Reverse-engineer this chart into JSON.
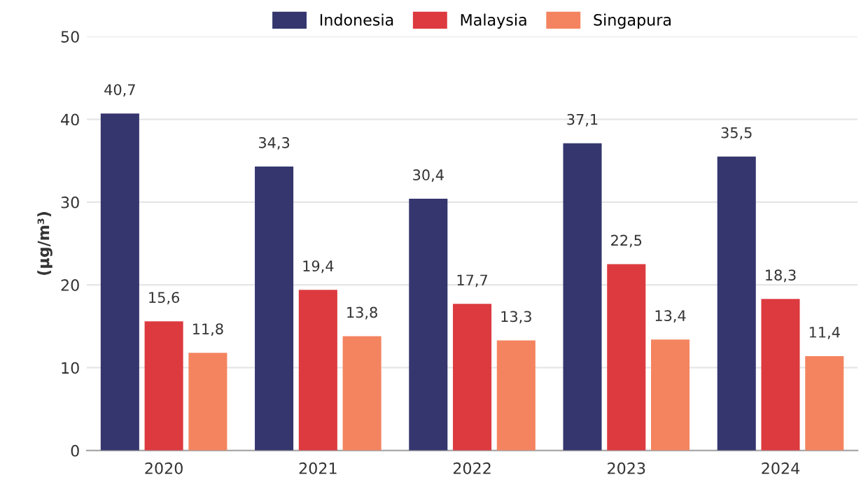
{
  "chart_data": {
    "type": "bar",
    "ylabel": "(µg/m³)",
    "categories": [
      "2020",
      "2021",
      "2022",
      "2023",
      "2024"
    ],
    "series": [
      {
        "name": "Indonesia",
        "color": "#35366e",
        "values": [
          40.7,
          34.3,
          30.4,
          37.1,
          35.5
        ],
        "value_labels": [
          "40,7",
          "34,3",
          "30,4",
          "37,1",
          "35,5"
        ]
      },
      {
        "name": "Malaysia",
        "color": "#dc3a3f",
        "values": [
          15.6,
          19.4,
          17.7,
          22.5,
          18.3
        ],
        "value_labels": [
          "15,6",
          "19,4",
          "17,7",
          "22,5",
          "18,3"
        ]
      },
      {
        "name": "Singapura",
        "color": "#f4845f",
        "values": [
          11.8,
          13.8,
          13.3,
          13.4,
          11.4
        ],
        "value_labels": [
          "11,8",
          "13,8",
          "13,3",
          "13,4",
          "11,4"
        ]
      }
    ],
    "ylim": [
      0,
      50
    ],
    "yticks": [
      0,
      10,
      20,
      30,
      40,
      50
    ],
    "grid": "y",
    "legend": "top"
  }
}
